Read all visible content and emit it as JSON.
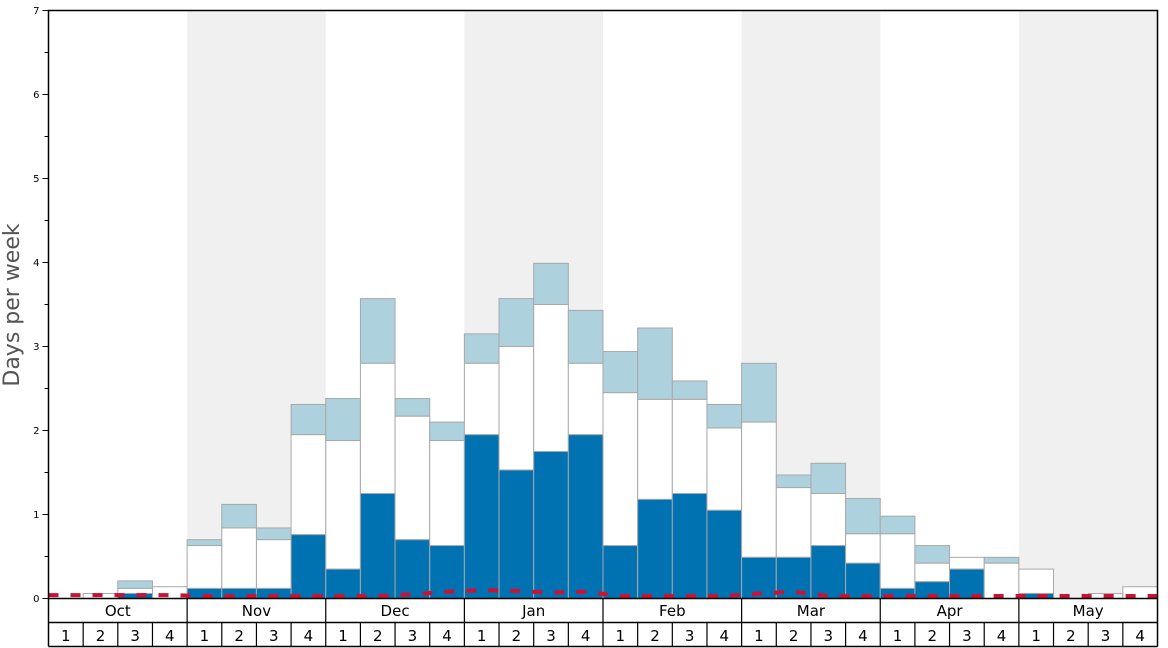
{
  "chart_data": {
    "type": "bar",
    "ylabel": "Days per week",
    "ylim": [
      0,
      7
    ],
    "yticks": [
      0,
      1,
      2,
      3,
      4,
      5,
      6,
      7
    ],
    "months": [
      "Oct",
      "Nov",
      "Dec",
      "Jan",
      "Feb",
      "Mar",
      "Apr",
      "May"
    ],
    "weeks": [
      "1",
      "2",
      "3",
      "4"
    ],
    "colors": {
      "lower": "#0072b2",
      "middle": "#ffffff",
      "upper": "#aed1de",
      "line": "#cc1133",
      "band": "#f0f0f0",
      "bar_stroke": "#a8a8a8"
    },
    "series": [
      {
        "values": [
          0,
          0,
          0.06,
          0,
          0.12,
          0.12,
          0.12,
          0.76,
          0.35,
          1.25,
          0.7,
          0.63,
          1.95,
          1.53,
          1.75,
          1.95,
          0.63,
          1.18,
          1.25,
          1.05,
          0.49,
          0.49,
          0.63,
          0.42,
          0.12,
          0.2,
          0.35,
          0,
          0.06,
          0,
          0,
          0
        ]
      },
      {
        "values": [
          0,
          0.06,
          0.12,
          0.14,
          0.63,
          0.84,
          0.7,
          1.95,
          1.88,
          2.8,
          2.17,
          1.88,
          2.8,
          3.0,
          3.5,
          2.8,
          2.45,
          2.37,
          2.37,
          2.03,
          2.1,
          1.32,
          1.25,
          0.77,
          0.77,
          0.42,
          0.49,
          0.42,
          0.35,
          0,
          0.06,
          0.14
        ]
      },
      {
        "values": [
          0,
          0.06,
          0.21,
          0.14,
          0.7,
          1.12,
          0.84,
          2.31,
          2.38,
          3.57,
          2.38,
          2.1,
          3.15,
          3.57,
          3.99,
          3.43,
          2.94,
          3.22,
          2.59,
          2.31,
          2.8,
          1.47,
          1.61,
          1.19,
          0.98,
          0.63,
          0.49,
          0.49,
          0.35,
          0,
          0.06,
          0.14
        ]
      },
      {
        "values": [
          0.04,
          0.04,
          0.04,
          0.04,
          0.03,
          0.03,
          0.03,
          0.03,
          0.03,
          0.03,
          0.05,
          0.08,
          0.1,
          0.09,
          0.07,
          0.08,
          0.03,
          0.03,
          0.03,
          0.03,
          0.06,
          0.08,
          0.03,
          0.03,
          0.03,
          0.03,
          0.03,
          0.03,
          0.03,
          0.03,
          0.03,
          0.03
        ]
      }
    ]
  }
}
